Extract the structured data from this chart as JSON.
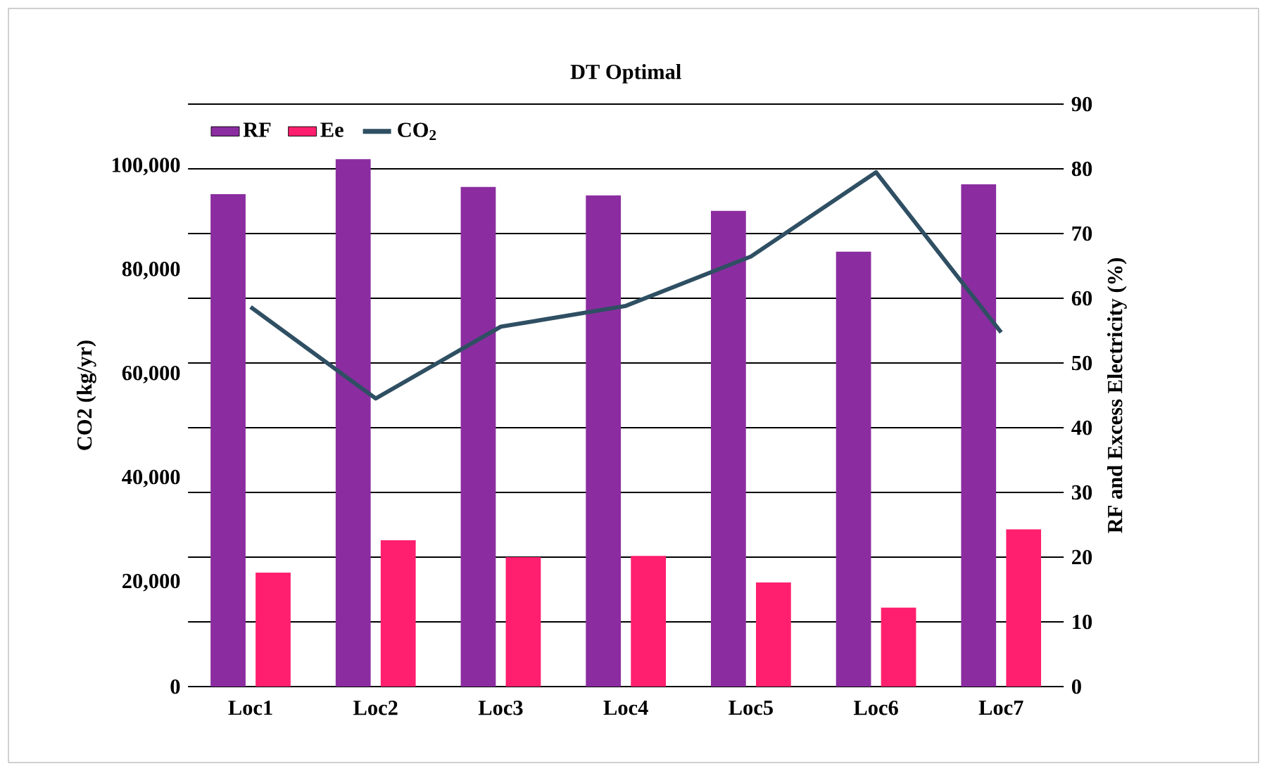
{
  "chart_data": {
    "type": "bar",
    "title": "DT Optimal",
    "ylabel": "CO2 (kg/yr)",
    "y2label": "RF and Excess Electricity (%)",
    "categories": [
      "Loc1",
      "Loc2",
      "Loc3",
      "Loc4",
      "Loc5",
      "Loc6",
      "Loc7"
    ],
    "series": [
      {
        "name": "RF",
        "axis": "y2",
        "color": "#8b2da0",
        "values": [
          76.1,
          81.5,
          77.2,
          75.9,
          73.5,
          67.2,
          77.6
        ]
      },
      {
        "name": "Ee",
        "axis": "y2",
        "color": "#ff1f6e",
        "values": [
          17.6,
          22.6,
          20.0,
          20.2,
          16.1,
          12.2,
          24.3
        ]
      },
      {
        "name": "CO$_{2}$",
        "type": "line",
        "axis": "y",
        "color": "#2f4f63",
        "values": [
          73000,
          55400,
          69200,
          73200,
          82700,
          98900,
          68100
        ]
      }
    ],
    "ylim": [
      0,
      112000
    ],
    "yticks": [
      0,
      {
        "value": 20000,
        "label": "20,000"
      },
      {
        "value": 40000,
        "label": "40,000"
      },
      {
        "value": 60000,
        "label": "60,000"
      },
      {
        "value": 80000,
        "label": "80,000"
      },
      {
        "value": 100000,
        "label": "100,000"
      }
    ],
    "y2lim": [
      0,
      90
    ],
    "y2ticks": [
      0,
      10,
      20,
      30,
      40,
      50,
      60,
      70,
      80,
      90
    ],
    "grid": "y",
    "legend": "top left",
    "marker": "none"
  }
}
